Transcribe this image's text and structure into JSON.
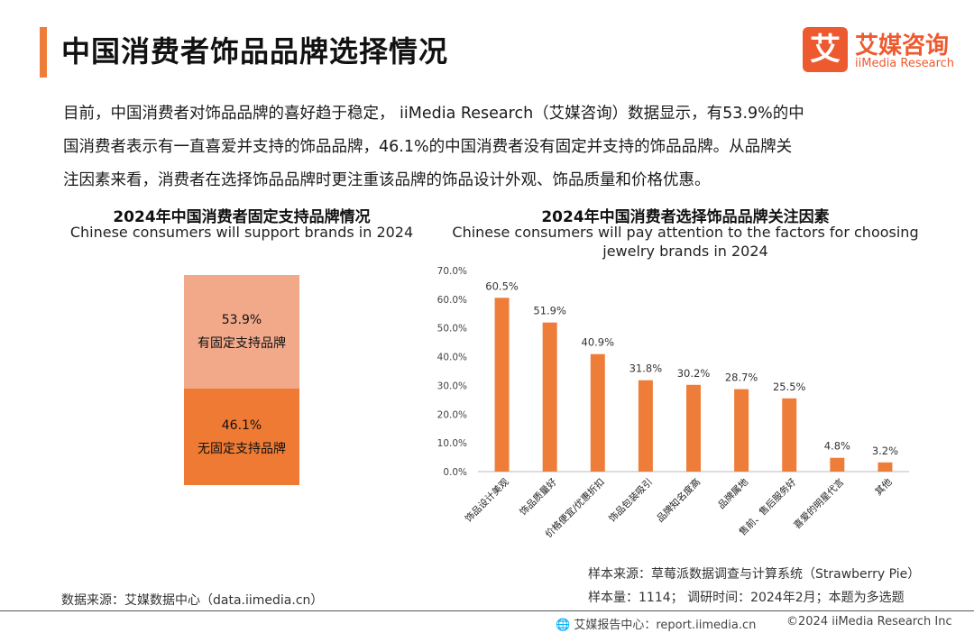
{
  "header": {
    "title": "中国消费者饰品品牌选择情况",
    "logo_mark": "艾",
    "logo_cn": "艾媒咨询",
    "logo_en": "iiMedia Research"
  },
  "intro": {
    "line1": "目前，中国消费者对饰品品牌的喜好趋于稳定， iiMedia Research（艾媒咨询）数据显示，有53.9%的中",
    "line2": "国消费者表示有一直喜爱并支持的饰品品牌，46.1%的中国消费者没有固定并支持的饰品品牌。从品牌关",
    "line3": "注因素来看，消费者在选择饰品品牌时更注重该品牌的饰品设计外观、饰品质量和价格优惠。"
  },
  "colors": {
    "accent": "#ef7d3a",
    "light": "#f1a98a",
    "dark": "#ee7a33",
    "brand": "#ee5a2f"
  },
  "chart_data": [
    {
      "type": "bar",
      "stacked": true,
      "title": "2024年中国消费者固定支持品牌情况",
      "subtitle": "Chinese consumers will support brands in 2024",
      "series": [
        {
          "name": "有固定支持品牌",
          "value": 53.9,
          "label": "53.9%"
        },
        {
          "name": "无固定支持品牌",
          "value": 46.1,
          "label": "46.1%"
        }
      ]
    },
    {
      "type": "bar",
      "title": "2024年中国消费者选择饰品品牌关注因素",
      "subtitle_line1": "Chinese consumers will pay attention to the factors for choosing",
      "subtitle_line2": "jewelry brands in 2024",
      "categories": [
        "饰品设计美观",
        "饰品质量好",
        "价格便宜/优惠折扣",
        "饰品包装吸引",
        "品牌知名度高",
        "品牌属地",
        "售前、售后服务好",
        "喜爱的明星代言",
        "其他"
      ],
      "values": [
        60.5,
        51.9,
        40.9,
        31.8,
        30.2,
        28.7,
        25.5,
        4.8,
        3.2
      ],
      "value_labels": [
        "60.5%",
        "51.9%",
        "40.9%",
        "31.8%",
        "30.2%",
        "28.7%",
        "25.5%",
        "4.8%",
        "3.2%"
      ],
      "yticks": [
        "0.0%",
        "10.0%",
        "20.0%",
        "30.0%",
        "40.0%",
        "50.0%",
        "60.0%",
        "70.0%"
      ],
      "ylim": [
        0,
        70
      ]
    }
  ],
  "notes": {
    "left_source": "数据来源：艾媒数据中心（data.iimedia.cn）",
    "sample_source": "样本来源：草莓派数据调查与计算系统（Strawberry Pie）",
    "sample_size": "样本量：1114；  调研时间：2024年2月；本题为多选题"
  },
  "footer": {
    "center": "艾媒报告中心：report.iimedia.cn",
    "right": "©2024  iiMedia Research  Inc"
  }
}
